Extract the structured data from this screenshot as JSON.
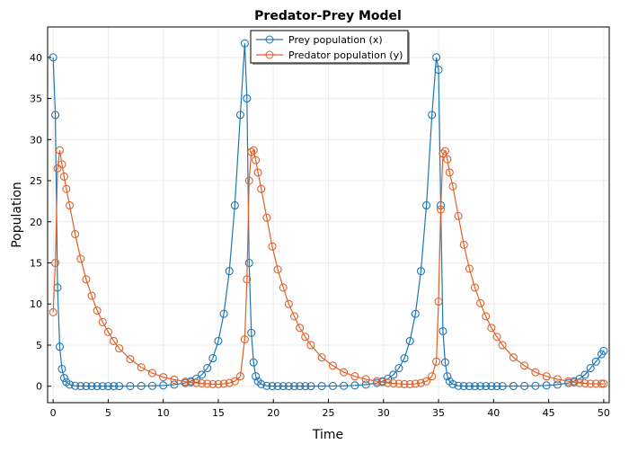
{
  "chart_data": {
    "type": "line",
    "title": "Predator-Prey Model",
    "x_label": "Time",
    "y_label": "Population",
    "x": [
      0,
      0.2,
      0.4,
      0.6,
      0.8,
      1.0,
      1.2,
      1.5,
      2,
      2.5,
      3,
      3.5,
      4,
      4.5,
      5,
      5.5,
      6,
      7,
      8,
      9,
      10,
      11,
      12,
      12.5,
      13,
      13.5,
      14,
      14.5,
      15,
      15.5,
      16,
      16.5,
      17,
      17.4,
      17.6,
      17.8,
      18.0,
      18.2,
      18.4,
      18.6,
      18.9,
      19.4,
      19.9,
      20.4,
      20.9,
      21.4,
      21.9,
      22.4,
      22.9,
      23.4,
      24.4,
      25.4,
      26.4,
      27.4,
      28.4,
      29.4,
      29.9,
      30.4,
      30.9,
      31.4,
      31.9,
      32.4,
      32.9,
      33.4,
      33.9,
      34.4,
      34.8,
      35.0,
      35.2,
      35.4,
      35.6,
      35.8,
      36.0,
      36.3,
      36.8,
      37.3,
      37.8,
      38.3,
      38.8,
      39.3,
      39.8,
      40.3,
      40.8,
      41.8,
      42.8,
      43.8,
      44.8,
      45.8,
      46.8,
      47.3,
      47.8,
      48.3,
      48.8,
      49.3,
      49.8,
      50
    ],
    "series": [
      {
        "name": "Prey population (x)",
        "color": "#1f77b4",
        "values": [
          40,
          33,
          12,
          4.8,
          2.1,
          1.0,
          0.5,
          0.2,
          0.05,
          0.02,
          0.01,
          0.01,
          0.01,
          0.01,
          0.01,
          0.01,
          0.01,
          0.02,
          0.03,
          0.05,
          0.1,
          0.2,
          0.4,
          0.6,
          0.9,
          1.4,
          2.2,
          3.4,
          5.5,
          8.8,
          14,
          22,
          33,
          41.7,
          35,
          15,
          6.5,
          2.9,
          1.2,
          0.6,
          0.25,
          0.05,
          0.02,
          0.01,
          0.01,
          0.01,
          0.01,
          0.01,
          0.01,
          0.01,
          0.02,
          0.03,
          0.05,
          0.1,
          0.2,
          0.4,
          0.6,
          0.9,
          1.4,
          2.2,
          3.4,
          5.5,
          8.8,
          14,
          22,
          33,
          40,
          38.5,
          22,
          6.7,
          2.9,
          1.2,
          0.6,
          0.25,
          0.05,
          0.02,
          0.01,
          0.01,
          0.01,
          0.01,
          0.01,
          0.01,
          0.01,
          0.02,
          0.03,
          0.05,
          0.1,
          0.2,
          0.4,
          0.6,
          0.9,
          1.4,
          2.2,
          3.0,
          3.9,
          4.3
        ]
      },
      {
        "name": "Predator population (y)",
        "color": "#e0602a",
        "values": [
          9,
          15,
          26.5,
          28.7,
          27,
          25.5,
          24,
          22,
          18.5,
          15.5,
          13,
          11,
          9.2,
          7.8,
          6.6,
          5.5,
          4.6,
          3.3,
          2.3,
          1.6,
          1.1,
          0.8,
          0.55,
          0.45,
          0.4,
          0.35,
          0.3,
          0.25,
          0.25,
          0.3,
          0.4,
          0.6,
          1.2,
          5.7,
          13,
          25,
          28.5,
          28.7,
          27.5,
          26,
          24,
          20.5,
          17,
          14.2,
          12,
          10,
          8.5,
          7.1,
          6,
          5,
          3.5,
          2.5,
          1.7,
          1.2,
          0.85,
          0.6,
          0.5,
          0.4,
          0.35,
          0.3,
          0.25,
          0.25,
          0.3,
          0.4,
          0.6,
          1.2,
          3,
          10.3,
          21.5,
          28.3,
          28.6,
          27.6,
          26,
          24.3,
          20.7,
          17.2,
          14.3,
          12,
          10.1,
          8.5,
          7.1,
          6,
          5,
          3.5,
          2.5,
          1.7,
          1.2,
          0.85,
          0.6,
          0.45,
          0.4,
          0.35,
          0.3,
          0.3,
          0.3,
          0.3
        ]
      }
    ],
    "xlim": [
      -0.5,
      50.5
    ],
    "xticks": [
      0,
      5,
      10,
      15,
      20,
      25,
      30,
      35,
      40,
      45,
      50
    ],
    "ylim": [
      -2,
      43.7
    ],
    "yticks": [
      0,
      5,
      10,
      15,
      20,
      25,
      30,
      35,
      40
    ],
    "grid": true,
    "legend": "top"
  }
}
